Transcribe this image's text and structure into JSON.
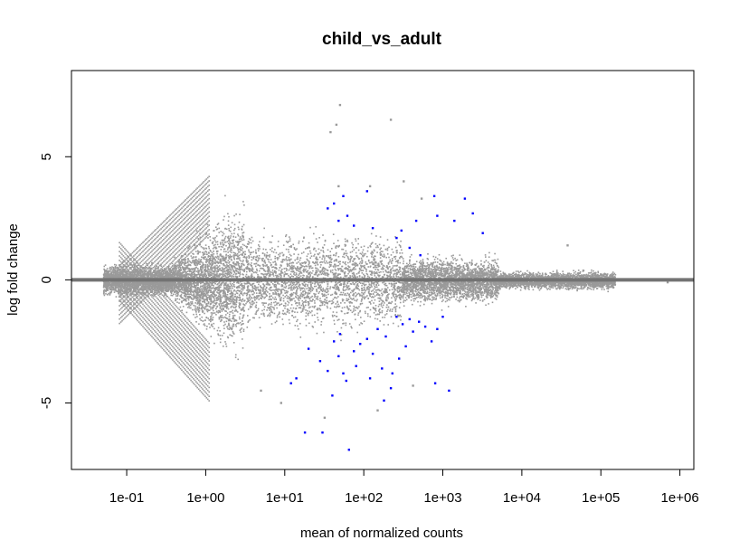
{
  "chart_data": {
    "type": "scatter",
    "title": "child_vs_adult",
    "xlabel": "mean of normalized counts",
    "ylabel": "log fold change",
    "x_scale": "log10",
    "xlim": [
      0.02,
      1500000
    ],
    "ylim": [
      -7.7,
      8.5
    ],
    "x_ticks": [
      {
        "value": 0.1,
        "label": "1e-01"
      },
      {
        "value": 1,
        "label": "1e+00"
      },
      {
        "value": 10,
        "label": "1e+01"
      },
      {
        "value": 100,
        "label": "1e+02"
      },
      {
        "value": 1000,
        "label": "1e+03"
      },
      {
        "value": 10000,
        "label": "1e+04"
      },
      {
        "value": 100000,
        "label": "1e+05"
      },
      {
        "value": 1000000,
        "label": "1e+06"
      }
    ],
    "y_ticks": [
      {
        "value": -5,
        "label": "-5"
      },
      {
        "value": 0,
        "label": "0"
      },
      {
        "value": 5,
        "label": "5"
      }
    ],
    "reference_line": {
      "y": 0,
      "color": "#737373"
    },
    "colors": {
      "nonsignificant": "#9a9a9a",
      "significant": "#0000ff"
    },
    "grid": false,
    "legend": "none",
    "series": [
      {
        "role": "significant",
        "x": [
          35,
          42,
          48,
          55,
          62,
          75,
          110,
          130,
          260,
          300,
          380,
          460,
          520,
          780,
          850,
          1400,
          1900,
          2400,
          3200,
          12,
          14,
          20,
          28,
          35,
          40,
          42,
          48,
          50,
          55,
          60,
          75,
          80,
          90,
          110,
          130,
          150,
          170,
          190,
          220,
          260,
          280,
          310,
          340,
          380,
          420,
          500,
          600,
          720,
          850,
          1000,
          1200,
          18,
          30,
          65,
          120,
          180,
          230,
          800
        ],
        "y": [
          2.9,
          3.1,
          2.4,
          3.4,
          2.6,
          2.2,
          3.6,
          2.1,
          1.7,
          2.0,
          1.3,
          2.4,
          1.0,
          3.4,
          2.6,
          2.4,
          3.3,
          2.7,
          1.9,
          -4.2,
          -4.0,
          -2.8,
          -3.3,
          -3.7,
          -4.7,
          -2.5,
          -3.1,
          -2.2,
          -3.8,
          -4.1,
          -2.9,
          -3.5,
          -2.6,
          -2.4,
          -3.0,
          -2.0,
          -3.6,
          -2.3,
          -4.4,
          -1.5,
          -3.2,
          -1.8,
          -2.7,
          -1.6,
          -2.1,
          -1.7,
          -1.9,
          -2.5,
          -2.0,
          -1.5,
          -4.5,
          -6.2,
          -6.2,
          -6.9,
          -4.0,
          -4.9,
          -3.8,
          -4.2
        ]
      },
      {
        "role": "nonsignificant-outliers",
        "x": [
          38,
          45,
          220,
          50,
          48,
          320,
          540,
          120,
          100000,
          38000,
          700000,
          5,
          9,
          32,
          150,
          420
        ],
        "y": [
          6.0,
          6.3,
          6.5,
          7.1,
          3.8,
          4.0,
          3.3,
          3.8,
          0.2,
          1.4,
          -0.1,
          -4.5,
          -5.0,
          -5.6,
          -5.3,
          -4.3
        ]
      }
    ],
    "cloud_bands": [
      {
        "x_range": [
          0.05,
          0.35
        ],
        "y_center": 0.0,
        "y_spread": 0.6
      },
      {
        "x_range": [
          0.35,
          3
        ],
        "y_center": 0.0,
        "y_spread": 2.8
      },
      {
        "x_range": [
          3,
          300
        ],
        "y_center": 0.0,
        "y_spread": 1.9
      },
      {
        "x_range": [
          300,
          5000
        ],
        "y_center": 0.0,
        "y_spread": 0.9
      },
      {
        "x_range": [
          5000,
          150000
        ],
        "y_center": 0.0,
        "y_spread": 0.35
      }
    ]
  }
}
